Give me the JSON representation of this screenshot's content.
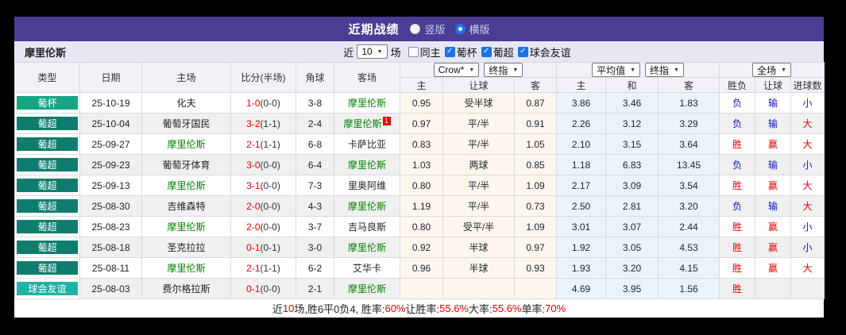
{
  "colors": {
    "titlebar_purple": "#4b3c94",
    "cup_green": "#16a482",
    "league_green": "#0e7d6e",
    "friendly_teal": "#20b2a6",
    "team_green": "#008000",
    "win_red": "#e60000",
    "lose_blue": "#1414cc",
    "crow_bg": "#fdf6ec",
    "avg_bg": "#e9f3fb"
  },
  "header": {
    "title": "近期战绩",
    "radios": [
      {
        "label": "竖版",
        "selected": false
      },
      {
        "label": "横版",
        "selected": true
      }
    ]
  },
  "controls": {
    "team": "摩里伦斯",
    "near_label": "近",
    "count_value": "10",
    "matches_label": "场",
    "checkboxes": [
      {
        "label": "同主",
        "checked": false
      },
      {
        "label": "葡杯",
        "checked": true
      },
      {
        "label": "葡超",
        "checked": true
      },
      {
        "label": "球会友谊",
        "checked": true
      }
    ]
  },
  "table": {
    "col_headers": {
      "type": "类型",
      "date": "日期",
      "home": "主场",
      "score": "比分(半场)",
      "corner": "角球",
      "away": "客场"
    },
    "group1": {
      "select1": "Crow*",
      "select2": "终指"
    },
    "group2": {
      "select1": "平均值",
      "select2": "终指"
    },
    "group3": {
      "select1": "全场"
    },
    "sub_headers": [
      "主",
      "让球",
      "客",
      "主",
      "和",
      "客",
      "胜负",
      "让球",
      "进球数"
    ],
    "rows": [
      {
        "type": {
          "label": "葡杯",
          "color": "#16a482"
        },
        "date": "25-10-19",
        "home": {
          "name": "化夫",
          "green": false
        },
        "score": {
          "full": "1-0",
          "half": "(0-0)"
        },
        "corner": "3-8",
        "away": {
          "name": "摩里伦斯",
          "green": true,
          "badge": ""
        },
        "crow": [
          "0.95",
          "受半球",
          "0.87"
        ],
        "avg": [
          "3.86",
          "3.46",
          "1.83"
        ],
        "outcome": [
          {
            "t": "负",
            "c": "#1414cc"
          },
          {
            "t": "输",
            "c": "#1414cc"
          },
          {
            "t": "小",
            "c": "#1414cc"
          }
        ]
      },
      {
        "type": {
          "label": "葡超",
          "color": "#0e7d6e"
        },
        "date": "25-10-04",
        "home": {
          "name": "葡萄牙国民",
          "green": false
        },
        "score": {
          "full": "3-2",
          "half": "(1-1)"
        },
        "corner": "2-4",
        "away": {
          "name": "摩里伦斯",
          "green": true,
          "badge": "1"
        },
        "crow": [
          "0.97",
          "平/半",
          "0.91"
        ],
        "avg": [
          "2.26",
          "3.12",
          "3.29"
        ],
        "outcome": [
          {
            "t": "负",
            "c": "#1414cc"
          },
          {
            "t": "输",
            "c": "#1414cc"
          },
          {
            "t": "大",
            "c": "#e60000"
          }
        ]
      },
      {
        "type": {
          "label": "葡超",
          "color": "#0e7d6e"
        },
        "date": "25-09-27",
        "home": {
          "name": "摩里伦斯",
          "green": true
        },
        "score": {
          "full": "2-1",
          "half": "(1-1)"
        },
        "corner": "6-8",
        "away": {
          "name": "卡萨比亚",
          "green": false,
          "badge": ""
        },
        "crow": [
          "0.83",
          "平/半",
          "1.05"
        ],
        "avg": [
          "2.10",
          "3.15",
          "3.64"
        ],
        "outcome": [
          {
            "t": "胜",
            "c": "#e60000"
          },
          {
            "t": "赢",
            "c": "#e60000"
          },
          {
            "t": "大",
            "c": "#e60000"
          }
        ]
      },
      {
        "type": {
          "label": "葡超",
          "color": "#0e7d6e"
        },
        "date": "25-09-23",
        "home": {
          "name": "葡萄牙体育",
          "green": false
        },
        "score": {
          "full": "3-0",
          "half": "(0-0)"
        },
        "corner": "6-4",
        "away": {
          "name": "摩里伦斯",
          "green": true,
          "badge": ""
        },
        "crow": [
          "1.03",
          "两球",
          "0.85"
        ],
        "avg": [
          "1.18",
          "6.83",
          "13.45"
        ],
        "outcome": [
          {
            "t": "负",
            "c": "#1414cc"
          },
          {
            "t": "输",
            "c": "#1414cc"
          },
          {
            "t": "小",
            "c": "#1414cc"
          }
        ]
      },
      {
        "type": {
          "label": "葡超",
          "color": "#0e7d6e"
        },
        "date": "25-09-13",
        "home": {
          "name": "摩里伦斯",
          "green": true
        },
        "score": {
          "full": "3-1",
          "half": "(0-0)"
        },
        "corner": "7-3",
        "away": {
          "name": "里奥阿维",
          "green": false,
          "badge": ""
        },
        "crow": [
          "0.80",
          "平/半",
          "1.09"
        ],
        "avg": [
          "2.17",
          "3.09",
          "3.54"
        ],
        "outcome": [
          {
            "t": "胜",
            "c": "#e60000"
          },
          {
            "t": "赢",
            "c": "#e60000"
          },
          {
            "t": "大",
            "c": "#e60000"
          }
        ]
      },
      {
        "type": {
          "label": "葡超",
          "color": "#0e7d6e"
        },
        "date": "25-08-30",
        "home": {
          "name": "吉维森特",
          "green": false
        },
        "score": {
          "full": "2-0",
          "half": "(0-0)"
        },
        "corner": "4-3",
        "away": {
          "name": "摩里伦斯",
          "green": true,
          "badge": ""
        },
        "crow": [
          "1.19",
          "平/半",
          "0.73"
        ],
        "avg": [
          "2.50",
          "2.81",
          "3.20"
        ],
        "outcome": [
          {
            "t": "负",
            "c": "#1414cc"
          },
          {
            "t": "输",
            "c": "#1414cc"
          },
          {
            "t": "大",
            "c": "#e60000"
          }
        ]
      },
      {
        "type": {
          "label": "葡超",
          "color": "#0e7d6e"
        },
        "date": "25-08-23",
        "home": {
          "name": "摩里伦斯",
          "green": true
        },
        "score": {
          "full": "2-0",
          "half": "(0-0)"
        },
        "corner": "3-7",
        "away": {
          "name": "吉马良斯",
          "green": false,
          "badge": ""
        },
        "crow": [
          "0.80",
          "受平/半",
          "1.09"
        ],
        "avg": [
          "3.01",
          "3.07",
          "2.44"
        ],
        "outcome": [
          {
            "t": "胜",
            "c": "#e60000"
          },
          {
            "t": "赢",
            "c": "#e60000"
          },
          {
            "t": "小",
            "c": "#1414cc"
          }
        ]
      },
      {
        "type": {
          "label": "葡超",
          "color": "#0e7d6e"
        },
        "date": "25-08-18",
        "home": {
          "name": "圣克拉拉",
          "green": false
        },
        "score": {
          "full": "0-1",
          "half": "(0-1)"
        },
        "corner": "3-0",
        "away": {
          "name": "摩里伦斯",
          "green": true,
          "badge": ""
        },
        "crow": [
          "0.92",
          "半球",
          "0.97"
        ],
        "avg": [
          "1.92",
          "3.05",
          "4.53"
        ],
        "outcome": [
          {
            "t": "胜",
            "c": "#e60000"
          },
          {
            "t": "赢",
            "c": "#e60000"
          },
          {
            "t": "小",
            "c": "#1414cc"
          }
        ]
      },
      {
        "type": {
          "label": "葡超",
          "color": "#0e7d6e"
        },
        "date": "25-08-11",
        "home": {
          "name": "摩里伦斯",
          "green": true
        },
        "score": {
          "full": "2-1",
          "half": "(1-1)"
        },
        "corner": "6-2",
        "away": {
          "name": "艾华卡",
          "green": false,
          "badge": ""
        },
        "crow": [
          "0.96",
          "半球",
          "0.93"
        ],
        "avg": [
          "1.93",
          "3.20",
          "4.15"
        ],
        "outcome": [
          {
            "t": "胜",
            "c": "#e60000"
          },
          {
            "t": "赢",
            "c": "#e60000"
          },
          {
            "t": "大",
            "c": "#e60000"
          }
        ]
      },
      {
        "type": {
          "label": "球会友谊",
          "color": "#20b2a6"
        },
        "date": "25-08-03",
        "home": {
          "name": "费尔格拉斯",
          "green": false
        },
        "score": {
          "full": "0-1",
          "half": "(0-0)"
        },
        "corner": "2-1",
        "away": {
          "name": "摩里伦斯",
          "green": true,
          "badge": ""
        },
        "crow": [
          "",
          "",
          ""
        ],
        "avg": [
          "4.69",
          "3.95",
          "1.56"
        ],
        "outcome": [
          {
            "t": "胜",
            "c": "#e60000"
          },
          {
            "t": "",
            "c": ""
          },
          {
            "t": "",
            "c": ""
          }
        ]
      }
    ]
  },
  "footer": {
    "segments": [
      {
        "t": "近",
        "c": "#222222"
      },
      {
        "t": "10",
        "c": "#e60000"
      },
      {
        "t": "场,胜6平0负4, 胜率:",
        "c": "#222222"
      },
      {
        "t": "60%",
        "c": "#e60000"
      },
      {
        "t": " 让胜率:",
        "c": "#222222"
      },
      {
        "t": "55.6%",
        "c": "#e60000"
      },
      {
        "t": " 大率:",
        "c": "#222222"
      },
      {
        "t": "55.6%",
        "c": "#e60000"
      },
      {
        "t": " 单率:",
        "c": "#222222"
      },
      {
        "t": "70%",
        "c": "#e60000"
      }
    ]
  }
}
